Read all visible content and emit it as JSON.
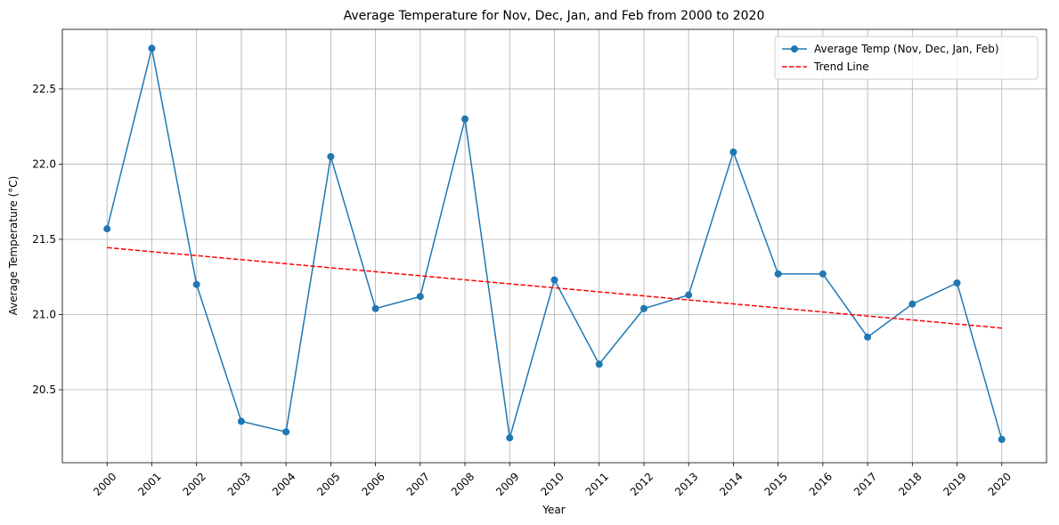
{
  "chart_data": {
    "type": "line",
    "title": "Average Temperature for Nov, Dec, Jan, and Feb from 2000 to 2020",
    "x_label": "Year",
    "y_label": "Average Temperature (°C)",
    "x": [
      2000,
      2001,
      2002,
      2003,
      2004,
      2005,
      2006,
      2007,
      2008,
      2009,
      2010,
      2011,
      2012,
      2013,
      2014,
      2015,
      2016,
      2017,
      2018,
      2019,
      2020
    ],
    "series": [
      {
        "name": "Average Temp (Nov, Dec, Jan, Feb)",
        "color": "#1f77b4",
        "style": "solid",
        "marker": true,
        "values": [
          21.57,
          22.77,
          21.2,
          20.29,
          20.22,
          22.05,
          21.04,
          21.12,
          22.3,
          20.18,
          21.23,
          20.67,
          21.04,
          21.13,
          22.08,
          21.27,
          21.27,
          20.85,
          21.07,
          21.21,
          20.17
        ]
      },
      {
        "name": "Trend Line",
        "color": "#ff0000",
        "style": "dashed",
        "marker": false,
        "values": [
          21.445,
          21.418,
          21.392,
          21.365,
          21.338,
          21.311,
          21.285,
          21.258,
          21.231,
          21.204,
          21.178,
          21.151,
          21.124,
          21.097,
          21.071,
          21.044,
          21.017,
          20.99,
          20.964,
          20.937,
          20.91
        ]
      }
    ],
    "xlim": [
      1999,
      2021
    ],
    "xticks": [
      2000,
      2001,
      2002,
      2003,
      2004,
      2005,
      2006,
      2007,
      2008,
      2009,
      2010,
      2011,
      2012,
      2013,
      2014,
      2015,
      2016,
      2017,
      2018,
      2019,
      2020
    ],
    "ylim": [
      20.015,
      22.896
    ],
    "yticks": [
      20.5,
      {
        "value": 21,
        "label": "21.0"
      },
      21.5,
      {
        "value": 22,
        "label": "22.0"
      },
      22.5
    ],
    "grid": true,
    "legend": "upper right"
  }
}
